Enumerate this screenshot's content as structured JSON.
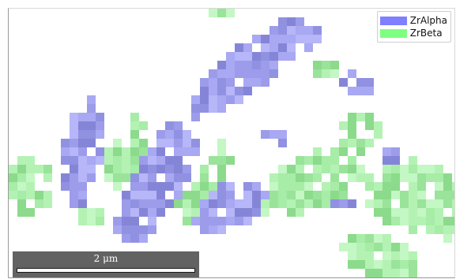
{
  "legend": {
    "entries": [
      {
        "label": "ZrAlpha",
        "color": "#7f7fff"
      },
      {
        "label": "ZrBeta",
        "color": "#7fff7f"
      }
    ]
  },
  "scale_bar": {
    "label": "2 μm",
    "value": 2,
    "unit": "μm"
  },
  "phase_colors": {
    "ZrAlpha": [
      "#a8a8f3",
      "#9c9cea",
      "#9191e2",
      "#8585d8",
      "#b6b6f8"
    ],
    "ZrBeta": [
      "#b4f2b4",
      "#a7eca7",
      "#9ae39a",
      "#8cda8c",
      "#c3f7c3"
    ]
  }
}
